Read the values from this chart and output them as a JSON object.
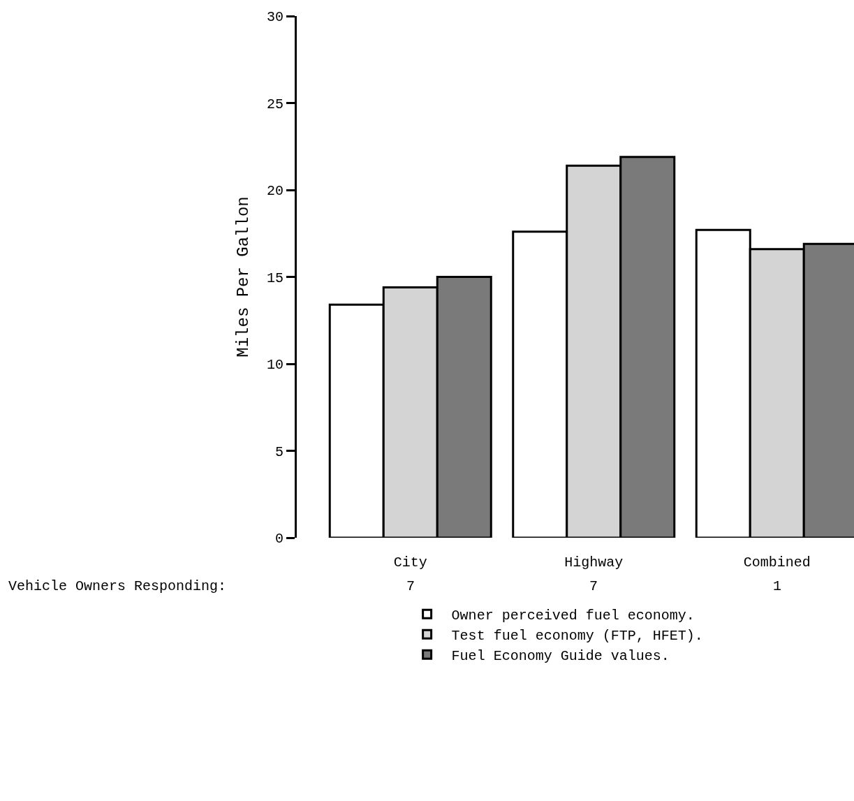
{
  "chart_data": {
    "type": "bar",
    "ylabel": "Miles Per Gallon",
    "categories": [
      "City",
      "Highway",
      "Combined"
    ],
    "series": [
      {
        "name": "Owner perceived fuel economy.",
        "color": "#ffffff",
        "values": [
          13.4,
          17.6,
          17.7
        ]
      },
      {
        "name": "Test fuel economy (FTP, HFET).",
        "color": "#d4d4d4",
        "values": [
          14.4,
          21.4,
          16.6
        ]
      },
      {
        "name": "Fuel Economy Guide values.",
        "color": "#7a7a7a",
        "values": [
          15.0,
          21.9,
          16.9
        ]
      }
    ],
    "ylim": [
      0,
      30
    ],
    "yticks": [
      0,
      5,
      10,
      15,
      20,
      25,
      30
    ],
    "legend": "bottom",
    "annotations": [
      "Vehicle Owners Responding:",
      "7",
      "7",
      "1"
    ]
  }
}
